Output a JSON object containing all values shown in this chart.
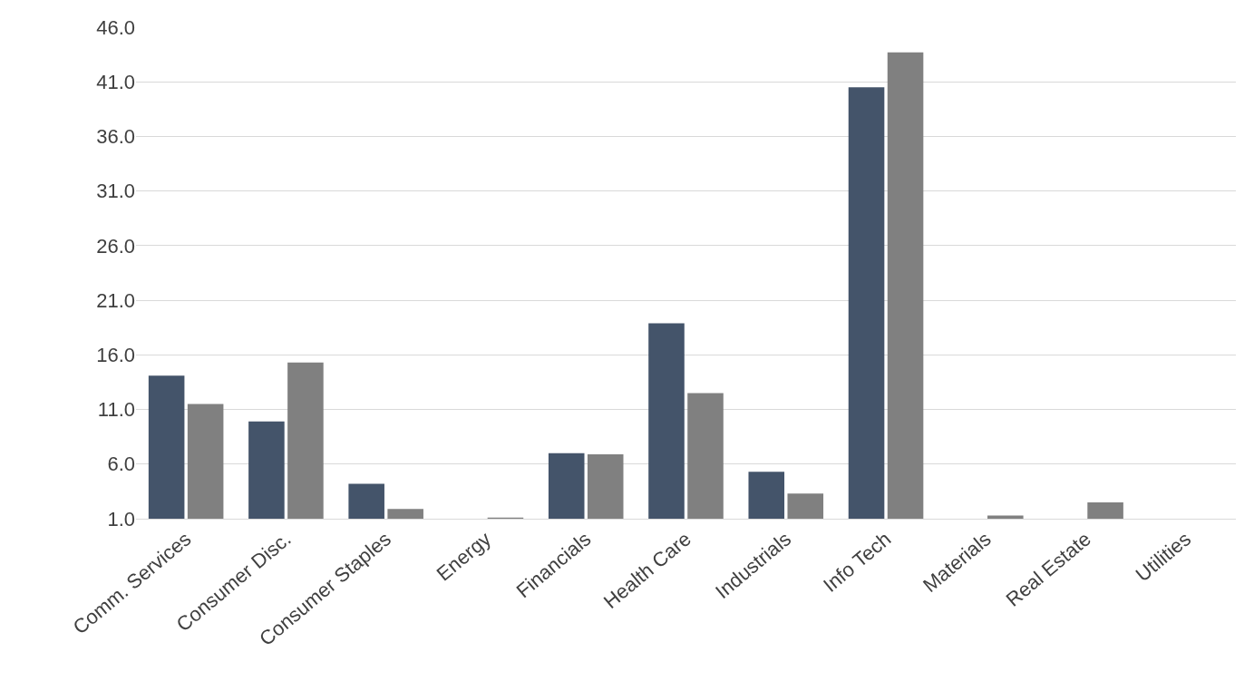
{
  "chart_data": {
    "type": "bar",
    "categories": [
      "Comm. Services",
      "Consumer Disc.",
      "Consumer Staples",
      "Energy",
      "Financials",
      "Health Care",
      "Industrials",
      "Info Tech",
      "Materials",
      "Real Estate",
      "Utilities"
    ],
    "series": [
      {
        "color": "#44546a",
        "values": [
          14.1,
          9.9,
          4.2,
          null,
          7.0,
          18.9,
          5.3,
          40.5,
          null,
          null,
          null
        ]
      },
      {
        "color": "#808080",
        "values": [
          11.5,
          15.3,
          1.9,
          1.1,
          6.9,
          12.5,
          3.3,
          43.7,
          1.3,
          2.5,
          null
        ]
      }
    ],
    "ylim": [
      1,
      46
    ],
    "yticks": [
      {
        "value": 1,
        "label": "1.0"
      },
      {
        "value": 6,
        "label": "6.0"
      },
      {
        "value": 11,
        "label": "11.0"
      },
      {
        "value": 16,
        "label": "16.0"
      },
      {
        "value": 21,
        "label": "21.0"
      },
      {
        "value": 26,
        "label": "26.0"
      },
      {
        "value": 31,
        "label": "31.0"
      },
      {
        "value": 36,
        "label": "36.0"
      },
      {
        "value": 41,
        "label": "41.0"
      },
      {
        "value": 46,
        "label": "46.0"
      }
    ],
    "grid": "y"
  }
}
